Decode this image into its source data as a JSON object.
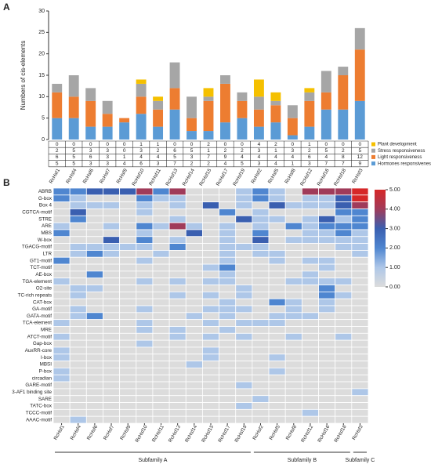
{
  "chart_data": [
    {
      "type": "stacked-bar",
      "panel": "A",
      "ylabel": "Numbers of cis-elements",
      "categories": [
        "RcHsf1",
        "RcHsf4",
        "RcHsf6",
        "RcHsf7",
        "RcHsf9",
        "RcHsf10",
        "RcHsf11",
        "RcHsf13",
        "RcHsf14",
        "RcHsf15",
        "RcHsf17",
        "RcHsf19",
        "RcHsf2",
        "RcHsf5",
        "RcHsf8",
        "RcHsf12",
        "RcHsf16",
        "RcHsf18",
        "RcHsf3"
      ],
      "series": [
        {
          "name": "Plant development",
          "color": "#f5c000",
          "values": [
            0,
            0,
            0,
            0,
            0,
            1,
            1,
            0,
            0,
            2,
            0,
            0,
            4,
            2,
            0,
            1,
            0,
            0,
            0
          ]
        },
        {
          "name": "Stress responsiveness",
          "color": "#a6a6a6",
          "values": [
            2,
            5,
            3,
            3,
            0,
            3,
            2,
            6,
            5,
            1,
            2,
            2,
            3,
            1,
            3,
            2,
            5,
            2,
            5
          ]
        },
        {
          "name": "Light responsiveness",
          "color": "#ed7d31",
          "values": [
            6,
            5,
            6,
            3,
            1,
            4,
            4,
            5,
            3,
            7,
            9,
            4,
            4,
            4,
            4,
            6,
            4,
            8,
            12
          ]
        },
        {
          "name": "Hormones responsiveness",
          "color": "#5b9bd5",
          "values": [
            5,
            5,
            3,
            3,
            4,
            6,
            3,
            7,
            2,
            2,
            4,
            5,
            3,
            4,
            1,
            3,
            7,
            7,
            9
          ]
        }
      ],
      "ylim": [
        0,
        30
      ],
      "yticks": [
        0,
        5,
        10,
        15,
        20,
        25,
        30
      ]
    },
    {
      "type": "heatmap",
      "panel": "B",
      "subfamilies": [
        {
          "name": "Subfamily A",
          "columns": [
            "RcHsf1",
            "RcHsf4",
            "RcHsf6",
            "RcHsf7",
            "RcHsf9",
            "RcHsf10",
            "RcHsf11",
            "RcHsf13",
            "RcHsf14",
            "RcHsf15",
            "RcHsf17",
            "RcHsf19"
          ]
        },
        {
          "name": "Subfamily B",
          "columns": [
            "RcHsf2",
            "RcHsf5",
            "RcHsf8",
            "RcHsf12",
            "RcHsf16",
            "RcHsf18"
          ]
        },
        {
          "name": "Subfamily C",
          "columns": [
            "RcHsf3"
          ]
        }
      ],
      "rows": [
        "ABRB",
        "G-box",
        "Box 4",
        "CGTCA-motif",
        "STRE",
        "ARE",
        "MBS",
        "W-box",
        "TGACG-motif",
        "LTR",
        "GT1-motif",
        "TCT-motif",
        "AE-box",
        "TGA-element",
        "O2-site",
        "TC-rich repeats",
        "CAT-box",
        "GA-motif",
        "GATA-motif",
        "TCA-element",
        "MRE",
        "ATCT-motif",
        "Gap-box",
        "AuxRR-core",
        "I-box",
        "MBSI",
        "P-box",
        "circadian",
        "GARE-motif",
        "3-AF1 binding site",
        "SARE",
        "TATC-box",
        "TCCC-motif",
        "AAAC-motif"
      ],
      "values": [
        [
          2,
          2,
          3,
          3,
          3,
          4,
          2,
          4,
          0,
          0,
          0,
          1,
          2,
          1,
          0,
          4,
          4,
          4,
          5
        ],
        [
          2,
          1,
          0,
          0,
          0,
          2,
          1,
          1,
          0,
          0,
          0,
          1,
          2,
          1,
          0,
          1,
          1,
          3,
          5
        ],
        [
          0,
          1,
          1,
          1,
          0,
          1,
          0,
          1,
          0,
          3,
          0,
          1,
          0,
          3,
          1,
          1,
          1,
          3,
          4
        ],
        [
          0,
          3,
          0,
          0,
          0,
          1,
          0,
          0,
          0,
          0,
          2,
          0,
          1,
          0,
          0,
          0,
          0,
          2,
          2
        ],
        [
          0,
          2,
          0,
          0,
          0,
          0,
          0,
          1,
          0,
          0,
          0,
          3,
          1,
          1,
          0,
          1,
          3,
          1,
          2
        ],
        [
          1,
          0,
          0,
          1,
          0,
          2,
          1,
          4,
          1,
          0,
          1,
          0,
          1,
          0,
          2,
          1,
          2,
          2,
          2
        ],
        [
          2,
          0,
          0,
          0,
          0,
          1,
          0,
          0,
          3,
          0,
          1,
          0,
          2,
          0,
          0,
          1,
          1,
          2,
          1
        ],
        [
          0,
          0,
          0,
          3,
          0,
          2,
          0,
          1,
          0,
          0,
          1,
          0,
          3,
          0,
          1,
          1,
          1,
          1,
          1
        ],
        [
          0,
          1,
          1,
          1,
          1,
          1,
          0,
          2,
          0,
          0,
          1,
          1,
          1,
          0,
          0,
          0,
          0,
          1,
          1
        ],
        [
          0,
          1,
          2,
          1,
          0,
          0,
          1,
          0,
          0,
          0,
          1,
          0,
          1,
          1,
          0,
          0,
          0,
          0,
          1
        ],
        [
          2,
          0,
          0,
          0,
          0,
          1,
          0,
          0,
          0,
          0,
          1,
          0,
          0,
          1,
          0,
          1,
          1,
          0,
          0
        ],
        [
          0,
          0,
          0,
          0,
          0,
          0,
          0,
          0,
          0,
          1,
          2,
          0,
          0,
          0,
          0,
          0,
          1,
          0,
          0
        ],
        [
          0,
          0,
          2,
          0,
          0,
          0,
          0,
          0,
          0,
          0,
          1,
          0,
          0,
          0,
          0,
          1,
          0,
          0,
          0
        ],
        [
          1,
          0,
          0,
          0,
          0,
          1,
          0,
          1,
          0,
          1,
          1,
          0,
          0,
          0,
          1,
          1,
          1,
          1,
          0
        ],
        [
          0,
          1,
          1,
          0,
          0,
          0,
          0,
          0,
          0,
          0,
          0,
          1,
          0,
          0,
          0,
          0,
          2,
          0,
          0
        ],
        [
          0,
          1,
          0,
          0,
          0,
          0,
          0,
          1,
          0,
          1,
          0,
          1,
          0,
          0,
          0,
          0,
          2,
          1,
          0
        ],
        [
          0,
          0,
          0,
          0,
          0,
          0,
          0,
          0,
          0,
          0,
          1,
          0,
          0,
          2,
          1,
          0,
          1,
          0,
          0
        ],
        [
          0,
          1,
          0,
          0,
          0,
          1,
          0,
          0,
          0,
          1,
          1,
          1,
          0,
          0,
          1,
          0,
          1,
          0,
          0
        ],
        [
          0,
          1,
          2,
          0,
          0,
          0,
          0,
          0,
          1,
          0,
          1,
          0,
          0,
          1,
          1,
          1,
          0,
          0,
          0
        ],
        [
          1,
          0,
          0,
          0,
          0,
          1,
          0,
          0,
          0,
          1,
          0,
          1,
          1,
          1,
          0,
          0,
          0,
          0,
          0
        ],
        [
          0,
          0,
          0,
          0,
          0,
          1,
          0,
          1,
          0,
          0,
          1,
          0,
          0,
          0,
          0,
          0,
          0,
          0,
          0
        ],
        [
          1,
          0,
          0,
          0,
          0,
          0,
          0,
          1,
          0,
          1,
          0,
          1,
          0,
          0,
          1,
          0,
          0,
          1,
          0
        ],
        [
          0,
          0,
          0,
          0,
          0,
          1,
          0,
          0,
          0,
          0,
          0,
          0,
          0,
          0,
          0,
          0,
          0,
          0,
          0
        ],
        [
          1,
          0,
          0,
          0,
          0,
          0,
          0,
          0,
          0,
          1,
          0,
          0,
          0,
          0,
          0,
          0,
          0,
          0,
          0
        ],
        [
          1,
          0,
          0,
          0,
          0,
          0,
          0,
          0,
          0,
          1,
          0,
          0,
          0,
          1,
          0,
          0,
          0,
          0,
          0
        ],
        [
          0,
          0,
          0,
          0,
          0,
          0,
          0,
          0,
          1,
          0,
          0,
          0,
          0,
          0,
          0,
          0,
          0,
          0,
          0
        ],
        [
          1,
          0,
          0,
          0,
          0,
          0,
          0,
          0,
          0,
          0,
          0,
          0,
          0,
          1,
          0,
          0,
          0,
          0,
          0
        ],
        [
          1,
          0,
          0,
          0,
          0,
          0,
          0,
          0,
          0,
          0,
          0,
          0,
          0,
          0,
          0,
          0,
          0,
          0,
          0
        ],
        [
          0,
          0,
          0,
          0,
          0,
          0,
          0,
          0,
          0,
          0,
          0,
          1,
          0,
          0,
          0,
          0,
          0,
          0,
          0
        ],
        [
          0,
          0,
          0,
          0,
          0,
          0,
          0,
          0,
          0,
          0,
          0,
          0,
          0,
          0,
          0,
          0,
          0,
          0,
          1
        ],
        [
          0,
          0,
          0,
          0,
          0,
          0,
          0,
          0,
          0,
          0,
          0,
          0,
          1,
          0,
          0,
          0,
          0,
          0,
          0
        ],
        [
          0,
          0,
          0,
          0,
          0,
          0,
          0,
          0,
          0,
          0,
          0,
          1,
          0,
          0,
          0,
          0,
          0,
          0,
          0
        ],
        [
          0,
          0,
          0,
          0,
          0,
          0,
          0,
          0,
          0,
          0,
          0,
          0,
          0,
          0,
          0,
          1,
          0,
          0,
          0
        ],
        [
          0,
          1,
          0,
          0,
          0,
          0,
          0,
          0,
          0,
          0,
          0,
          0,
          0,
          0,
          0,
          0,
          0,
          0,
          0
        ]
      ],
      "zlim": [
        0,
        5
      ],
      "colorscale": [
        [
          0,
          "#dcdcdc"
        ],
        [
          1,
          "#aec7e8"
        ],
        [
          2,
          "#4f86d0"
        ],
        [
          3,
          "#3a5fb0"
        ],
        [
          4,
          "#a03b5a"
        ],
        [
          5,
          "#d62728"
        ]
      ],
      "zticks": [
        {
          "value": 5,
          "label": "5.00"
        },
        {
          "value": 4,
          "label": "4.00"
        },
        {
          "value": 3,
          "label": "3.00"
        },
        {
          "value": 2,
          "label": "2.00"
        },
        {
          "value": 1,
          "label": "1.00"
        },
        {
          "value": 0,
          "label": "0.00"
        }
      ]
    }
  ]
}
